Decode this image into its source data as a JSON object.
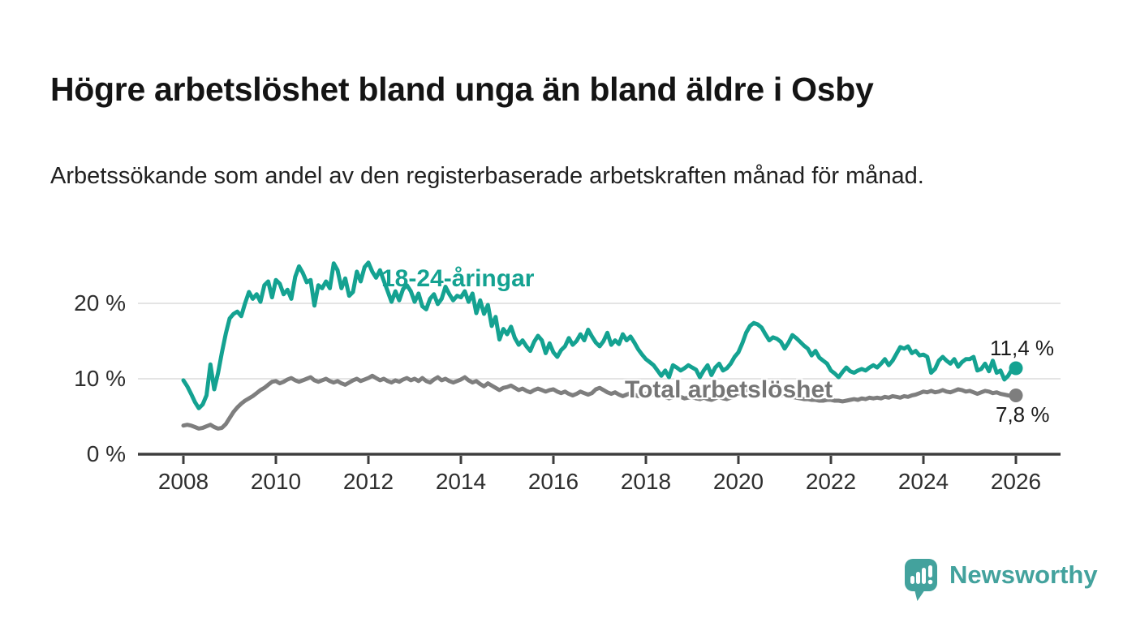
{
  "header": {
    "title": "Högre arbetslöshet bland unga än bland äldre i Osby",
    "subtitle": "Arbetssökande som andel av den registerbaserade arbetskraften månad för månad."
  },
  "chart_data": {
    "type": "line",
    "title": "Högre arbetslöshet bland unga än bland äldre i Osby",
    "subtitle": "Arbetssökande som andel av den registerbaserade arbetskraften månad för månad.",
    "unit": "%",
    "x_interval": "monthly",
    "x_start_year": 2008,
    "x_end": "2026-01",
    "grid": "horizontal",
    "legend_position": "inline-labels",
    "ylim": [
      0,
      27
    ],
    "y_ticks": [
      {
        "value": 0,
        "label": "0 %"
      },
      {
        "value": 10,
        "label": "10 %"
      },
      {
        "value": 20,
        "label": "20 %"
      }
    ],
    "x_tick_years": [
      "2008",
      "2010",
      "2012",
      "2014",
      "2016",
      "2018",
      "2020",
      "2022",
      "2024",
      "2026"
    ],
    "series": [
      {
        "name": "18-24-åringar",
        "color": "#14a291",
        "end_value": 11.4,
        "end_label": "11,4 %",
        "values": [
          9.8,
          9.0,
          8.0,
          6.9,
          6.1,
          6.6,
          7.8,
          11.9,
          8.6,
          10.8,
          13.5,
          16.0,
          18.0,
          18.6,
          18.9,
          18.3,
          20.0,
          21.5,
          20.6,
          21.2,
          20.2,
          22.4,
          22.9,
          20.8,
          23.1,
          22.6,
          21.2,
          21.8,
          20.6,
          23.5,
          24.9,
          24.0,
          22.8,
          23.1,
          19.7,
          22.4,
          22.0,
          22.9,
          22.0,
          25.3,
          24.4,
          22.0,
          23.3,
          21.0,
          21.5,
          24.2,
          22.9,
          24.8,
          25.4,
          24.2,
          23.4,
          24.4,
          23.0,
          21.6,
          20.2,
          21.6,
          20.4,
          21.9,
          22.4,
          21.6,
          20.2,
          21.3,
          19.6,
          19.2,
          20.6,
          21.2,
          19.9,
          20.6,
          22.2,
          21.2,
          20.4,
          21.0,
          20.8,
          21.6,
          20.2,
          21.3,
          18.7,
          20.4,
          18.6,
          19.8,
          17.0,
          18.2,
          15.2,
          16.6,
          15.9,
          16.9,
          15.4,
          14.5,
          15.1,
          14.3,
          13.7,
          14.9,
          15.7,
          15.1,
          13.4,
          14.7,
          13.5,
          12.9,
          13.8,
          14.3,
          15.4,
          14.5,
          15.0,
          15.9,
          15.1,
          16.5,
          15.6,
          14.8,
          14.3,
          15.0,
          16.1,
          14.5,
          15.1,
          14.6,
          15.9,
          15.1,
          15.6,
          14.8,
          13.9,
          13.2,
          12.6,
          12.2,
          11.8,
          11.1,
          10.4,
          11.1,
          10.2,
          11.8,
          11.5,
          11.1,
          11.4,
          11.8,
          11.5,
          11.2,
          10.2,
          11.1,
          11.8,
          10.5,
          11.5,
          12.0,
          11.1,
          11.4,
          12.0,
          12.9,
          13.5,
          14.7,
          16.1,
          17.0,
          17.4,
          17.2,
          16.8,
          15.9,
          15.1,
          15.5,
          15.3,
          14.9,
          14.0,
          14.8,
          15.8,
          15.4,
          14.9,
          14.4,
          14.0,
          13.1,
          13.7,
          12.8,
          12.4,
          12.0,
          11.1,
          10.7,
          10.2,
          10.9,
          11.5,
          11.0,
          10.8,
          11.1,
          11.3,
          11.1,
          11.5,
          11.8,
          11.5,
          12.0,
          12.6,
          11.8,
          12.4,
          13.3,
          14.2,
          14.0,
          14.3,
          13.4,
          13.7,
          13.1,
          13.2,
          12.9,
          10.8,
          11.3,
          12.4,
          12.9,
          12.4,
          12.0,
          12.6,
          11.6,
          12.2,
          12.6,
          12.6,
          12.9,
          11.1,
          11.3,
          12.0,
          11.0,
          12.4,
          10.8,
          11.1,
          9.9,
          10.4,
          11.3,
          11.4
        ]
      },
      {
        "name": "Total arbetslöshet",
        "color": "#7e7e7e",
        "end_value": 7.8,
        "end_label": "7,8 %",
        "values": [
          3.8,
          3.9,
          3.8,
          3.6,
          3.4,
          3.5,
          3.7,
          3.9,
          3.6,
          3.4,
          3.5,
          4.0,
          4.8,
          5.6,
          6.2,
          6.7,
          7.1,
          7.4,
          7.7,
          8.1,
          8.5,
          8.8,
          9.2,
          9.6,
          9.7,
          9.4,
          9.6,
          9.9,
          10.1,
          9.8,
          9.6,
          9.8,
          10.0,
          10.2,
          9.8,
          9.6,
          9.8,
          10.0,
          9.7,
          9.5,
          9.7,
          9.4,
          9.2,
          9.5,
          9.8,
          10.0,
          9.7,
          9.9,
          10.1,
          10.4,
          10.1,
          9.8,
          10.0,
          9.7,
          9.5,
          9.8,
          9.6,
          9.9,
          10.1,
          9.8,
          10.0,
          9.7,
          10.1,
          9.7,
          9.5,
          9.9,
          10.2,
          9.8,
          10.0,
          9.7,
          9.5,
          9.7,
          9.9,
          10.2,
          9.8,
          9.5,
          9.7,
          9.3,
          9.0,
          9.4,
          9.1,
          8.8,
          8.5,
          8.8,
          8.9,
          9.1,
          8.8,
          8.5,
          8.7,
          8.4,
          8.2,
          8.5,
          8.7,
          8.5,
          8.3,
          8.5,
          8.6,
          8.3,
          8.1,
          8.3,
          8.0,
          7.8,
          8.0,
          8.3,
          8.1,
          7.9,
          8.1,
          8.6,
          8.8,
          8.5,
          8.2,
          8.0,
          8.2,
          7.9,
          7.7,
          7.9,
          8.1,
          7.9,
          7.7,
          7.8,
          8.0,
          8.2,
          7.9,
          7.7,
          7.9,
          7.6,
          7.4,
          7.6,
          7.8,
          7.6,
          7.4,
          7.5,
          7.6,
          7.4,
          7.3,
          7.5,
          7.3,
          7.2,
          7.4,
          7.6,
          7.4,
          7.3,
          7.5,
          7.7,
          8.0,
          8.2,
          8.5,
          8.6,
          8.5,
          8.4,
          8.3,
          8.2,
          8.1,
          8.0,
          7.9,
          7.8,
          7.8,
          7.7,
          7.6,
          7.5,
          7.4,
          7.3,
          7.3,
          7.2,
          7.2,
          7.1,
          7.1,
          7.2,
          7.2,
          7.1,
          7.1,
          7.0,
          7.1,
          7.2,
          7.3,
          7.2,
          7.4,
          7.3,
          7.5,
          7.4,
          7.5,
          7.4,
          7.6,
          7.5,
          7.7,
          7.6,
          7.5,
          7.7,
          7.6,
          7.8,
          7.9,
          8.1,
          8.3,
          8.2,
          8.4,
          8.2,
          8.3,
          8.5,
          8.3,
          8.2,
          8.4,
          8.6,
          8.5,
          8.3,
          8.4,
          8.2,
          8.0,
          8.2,
          8.4,
          8.3,
          8.1,
          8.2,
          8.0,
          7.9,
          7.8,
          7.7,
          7.8
        ]
      }
    ],
    "style": {
      "grid_color": "#dcdcdc",
      "axis_color": "#3d3d3d",
      "tick_label_color": "#2e2e2e"
    }
  },
  "branding": {
    "logo_text": "Newsworthy",
    "logo_color": "#43a29d",
    "logo_icon": "speech-bubble-bar-chart-icon"
  }
}
